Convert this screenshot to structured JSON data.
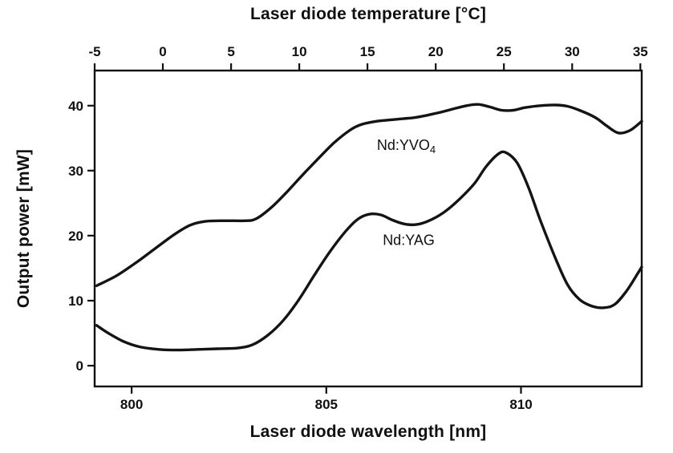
{
  "chart_data": {
    "type": "line",
    "title": "",
    "xlabel": "Laser diode wavelength [nm]",
    "x_top_label": "Laser diode temperature [°C]",
    "ylabel": "Output power [mW]",
    "x_range": [
      799.05,
      813.1
    ],
    "x_top_range": [
      -5,
      35.1
    ],
    "y_range": [
      -3.2,
      45.4
    ],
    "x_ticks": [
      800,
      805,
      810
    ],
    "x_top_ticks": [
      -5,
      0,
      5,
      10,
      15,
      20,
      25,
      30,
      35
    ],
    "y_ticks": [
      0,
      10,
      20,
      30,
      40
    ],
    "grid": false,
    "legend": "inline-annotations",
    "line_color": "#141414",
    "line_width": 3.4,
    "series": [
      {
        "name": "Nd:YVO4",
        "points": [
          [
            799.1,
            12.3
          ],
          [
            799.6,
            13.8
          ],
          [
            800.1,
            15.8
          ],
          [
            800.6,
            18.0
          ],
          [
            801.1,
            20.2
          ],
          [
            801.5,
            21.6
          ],
          [
            801.9,
            22.2
          ],
          [
            802.4,
            22.3
          ],
          [
            802.9,
            22.3
          ],
          [
            803.2,
            22.6
          ],
          [
            803.6,
            24.4
          ],
          [
            804.0,
            26.8
          ],
          [
            804.4,
            29.4
          ],
          [
            804.8,
            31.9
          ],
          [
            805.2,
            34.3
          ],
          [
            805.6,
            36.2
          ],
          [
            805.9,
            37.1
          ],
          [
            806.3,
            37.6
          ],
          [
            806.8,
            37.9
          ],
          [
            807.3,
            38.2
          ],
          [
            807.8,
            38.8
          ],
          [
            808.2,
            39.4
          ],
          [
            808.6,
            40.0
          ],
          [
            808.9,
            40.2
          ],
          [
            809.2,
            39.8
          ],
          [
            809.5,
            39.3
          ],
          [
            809.8,
            39.3
          ],
          [
            810.1,
            39.7
          ],
          [
            810.5,
            40.0
          ],
          [
            810.9,
            40.1
          ],
          [
            811.2,
            39.9
          ],
          [
            811.5,
            39.3
          ],
          [
            811.9,
            38.2
          ],
          [
            812.2,
            36.9
          ],
          [
            812.5,
            35.8
          ],
          [
            812.8,
            36.2
          ],
          [
            813.1,
            37.6
          ]
        ]
      },
      {
        "name": "Nd:YAG",
        "points": [
          [
            799.1,
            6.2
          ],
          [
            799.4,
            5.0
          ],
          [
            799.8,
            3.7
          ],
          [
            800.2,
            2.9
          ],
          [
            800.7,
            2.5
          ],
          [
            801.2,
            2.4
          ],
          [
            801.7,
            2.5
          ],
          [
            802.2,
            2.6
          ],
          [
            802.7,
            2.7
          ],
          [
            803.1,
            3.2
          ],
          [
            803.5,
            4.7
          ],
          [
            803.9,
            7.0
          ],
          [
            804.3,
            10.2
          ],
          [
            804.7,
            14.0
          ],
          [
            805.1,
            17.6
          ],
          [
            805.5,
            20.7
          ],
          [
            805.8,
            22.5
          ],
          [
            806.1,
            23.3
          ],
          [
            806.4,
            23.2
          ],
          [
            806.7,
            22.4
          ],
          [
            807.0,
            21.8
          ],
          [
            807.3,
            21.7
          ],
          [
            807.6,
            22.2
          ],
          [
            808.0,
            23.5
          ],
          [
            808.4,
            25.5
          ],
          [
            808.8,
            28.0
          ],
          [
            809.1,
            30.6
          ],
          [
            809.4,
            32.5
          ],
          [
            809.6,
            32.8
          ],
          [
            809.9,
            31.2
          ],
          [
            810.2,
            27.3
          ],
          [
            810.5,
            22.3
          ],
          [
            810.9,
            16.3
          ],
          [
            811.2,
            12.4
          ],
          [
            811.5,
            10.2
          ],
          [
            811.8,
            9.2
          ],
          [
            812.1,
            8.9
          ],
          [
            812.4,
            9.4
          ],
          [
            812.7,
            11.4
          ],
          [
            813.0,
            14.2
          ],
          [
            813.1,
            15.2
          ]
        ]
      }
    ],
    "annotations": [
      {
        "parts": [
          {
            "t": "Nd:YVO"
          },
          {
            "t": "4",
            "sub": true
          }
        ],
        "x": 806.3,
        "y": 33.2,
        "anchor": "start"
      },
      {
        "parts": [
          {
            "t": "Nd:YAG"
          }
        ],
        "x": 806.45,
        "y": 18.6,
        "anchor": "start"
      }
    ]
  }
}
